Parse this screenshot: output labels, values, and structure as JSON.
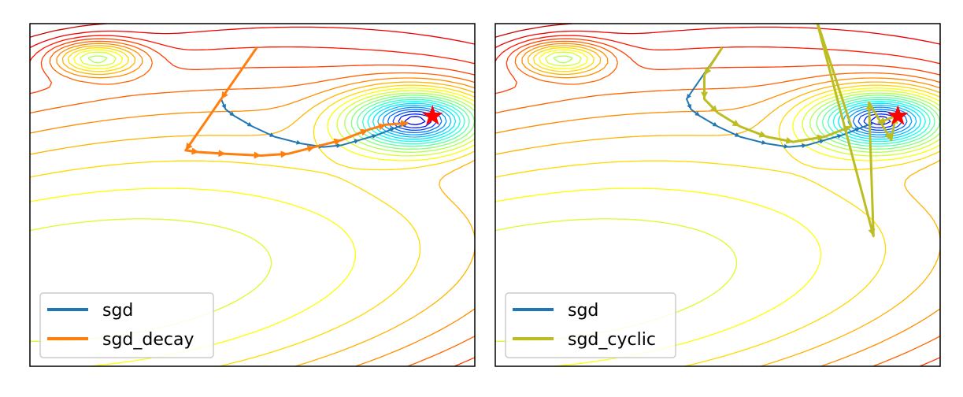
{
  "chart_data": [
    {
      "type": "line",
      "title": "",
      "xlabel": "",
      "ylabel": "",
      "grid": false,
      "legend_placement": "bottom-left",
      "optimum_marker": {
        "symbol": "star",
        "color": "#ff0000",
        "x": 0.905,
        "y": 0.27
      },
      "series": [
        {
          "name": "sgd",
          "color": "#1f77b4",
          "points": [
            [
              0.43,
              0.22
            ],
            [
              0.44,
              0.25
            ],
            [
              0.46,
              0.27
            ],
            [
              0.5,
              0.3
            ],
            [
              0.55,
              0.33
            ],
            [
              0.61,
              0.35
            ],
            [
              0.66,
              0.36
            ],
            [
              0.7,
              0.355
            ],
            [
              0.74,
              0.34
            ],
            [
              0.78,
              0.325
            ],
            [
              0.82,
              0.305
            ],
            [
              0.85,
              0.29
            ]
          ]
        },
        {
          "name": "sgd_decay",
          "color": "#ff7f0e",
          "points": [
            [
              0.51,
              0.07
            ],
            [
              0.43,
              0.22
            ],
            [
              0.35,
              0.37
            ],
            [
              0.38,
              0.375
            ],
            [
              0.44,
              0.38
            ],
            [
              0.52,
              0.385
            ],
            [
              0.58,
              0.38
            ],
            [
              0.64,
              0.36
            ],
            [
              0.7,
              0.34
            ],
            [
              0.76,
              0.31
            ],
            [
              0.8,
              0.295
            ],
            [
              0.85,
              0.29
            ]
          ]
        }
      ]
    },
    {
      "type": "line",
      "title": "",
      "xlabel": "",
      "ylabel": "",
      "grid": false,
      "legend_placement": "bottom-left",
      "optimum_marker": {
        "symbol": "star",
        "color": "#ff0000",
        "x": 0.905,
        "y": 0.27
      },
      "series": [
        {
          "name": "sgd",
          "color": "#1f77b4",
          "points": [
            [
              0.51,
              0.07
            ],
            [
              0.43,
              0.22
            ],
            [
              0.44,
              0.25
            ],
            [
              0.46,
              0.27
            ],
            [
              0.5,
              0.3
            ],
            [
              0.55,
              0.33
            ],
            [
              0.61,
              0.35
            ],
            [
              0.66,
              0.36
            ],
            [
              0.7,
              0.355
            ],
            [
              0.74,
              0.34
            ],
            [
              0.78,
              0.325
            ],
            [
              0.82,
              0.305
            ],
            [
              0.85,
              0.29
            ]
          ]
        },
        {
          "name": "sgd_cyclic",
          "color": "#bcbd22",
          "points": [
            [
              0.51,
              0.07
            ],
            [
              0.47,
              0.15
            ],
            [
              0.47,
              0.22
            ],
            [
              0.5,
              0.26
            ],
            [
              0.55,
              0.3
            ],
            [
              0.61,
              0.33
            ],
            [
              0.67,
              0.345
            ],
            [
              0.74,
              0.33
            ],
            [
              0.8,
              0.3
            ],
            [
              0.72,
              -0.02
            ],
            [
              0.85,
              0.62
            ],
            [
              0.84,
              0.23
            ],
            [
              0.89,
              0.34
            ],
            [
              0.9,
              0.27
            ],
            [
              0.86,
              0.29
            ]
          ]
        }
      ]
    }
  ]
}
